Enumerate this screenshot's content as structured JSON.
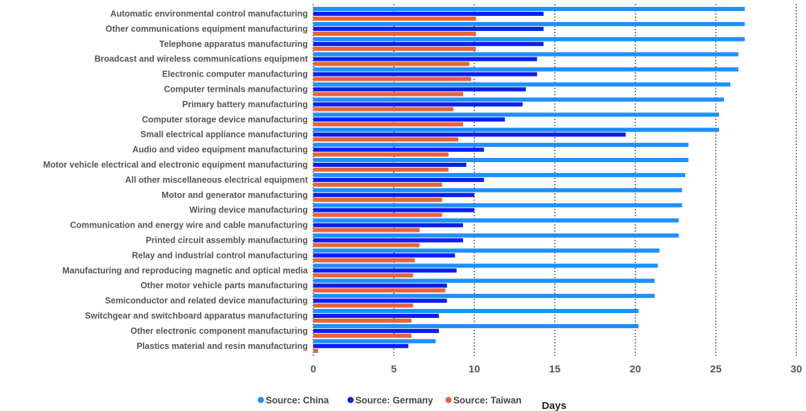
{
  "chart_data": {
    "type": "bar",
    "orientation": "horizontal",
    "categories": [
      "Automatic environmental control manufacturing",
      "Other communications equipment manufacturing",
      "Telephone apparatus manufacturing",
      "Broadcast and wireless communications equipment",
      "Electronic computer manufacturing",
      "Computer terminals manufacturing",
      "Primary battery manufacturing",
      "Computer storage device manufacturing",
      "Small electrical appliance manufacturing",
      "Audio and video equipment manufacturing",
      "Motor vehicle electrical and electronic equipment manufacturing",
      "All other miscellaneous electrical equipment",
      "Motor and generator manufacturing",
      "Wiring device manufacturing",
      "Communication and energy wire and cable manufacturing",
      "Printed circuit assembly manufacturing",
      "Relay and industrial control manufacturing",
      "Manufacturing and reproducing magnetic and optical media",
      "Other motor vehicle parts manufacturing",
      "Semiconductor and related device manufacturing",
      "Switchgear and switchboard apparatus manufacturing",
      "Other electronic component manufacturing",
      "Plastics material and resin manufacturing"
    ],
    "series": [
      {
        "name": "Source: China",
        "color": "#1e90ff",
        "values": [
          26.8,
          26.8,
          26.8,
          26.4,
          26.4,
          25.9,
          25.5,
          25.2,
          25.2,
          23.3,
          23.3,
          23.1,
          22.9,
          22.9,
          22.7,
          22.7,
          21.5,
          21.4,
          21.2,
          21.2,
          20.2,
          20.2,
          7.6
        ]
      },
      {
        "name": "Source: Germany",
        "color": "#0a1ef0",
        "values": [
          14.3,
          14.3,
          14.3,
          13.9,
          13.9,
          13.2,
          13.0,
          11.9,
          19.4,
          10.6,
          9.5,
          10.6,
          10.0,
          10.0,
          9.3,
          9.3,
          8.8,
          8.9,
          8.3,
          8.3,
          7.8,
          7.8,
          5.9
        ]
      },
      {
        "name": "Source: Taiwan",
        "color": "#e8643c",
        "values": [
          10.1,
          10.1,
          10.1,
          9.7,
          9.8,
          9.3,
          8.7,
          9.3,
          9.0,
          8.4,
          8.4,
          8.0,
          8.0,
          8.0,
          6.6,
          6.6,
          6.3,
          6.2,
          8.2,
          6.2,
          6.1,
          6.1,
          0.3
        ]
      }
    ],
    "xlabel": "Days",
    "xlim": [
      0,
      30
    ],
    "xticks": [
      0,
      5,
      10,
      15,
      20,
      25,
      30
    ],
    "grid": "vertical dotted",
    "legend_position": "bottom-center"
  }
}
